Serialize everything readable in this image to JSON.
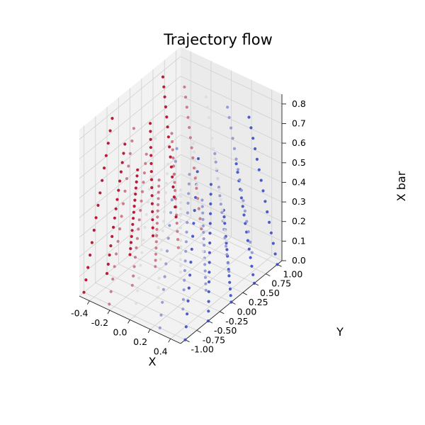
{
  "chart_data": {
    "type": "scatter",
    "projection": "3d",
    "title": "Trajectory flow",
    "xlabel": "X",
    "ylabel": "Y",
    "zlabel": "X bar",
    "xlim": [
      -0.5,
      0.5
    ],
    "ylim": [
      -1.1,
      1.1
    ],
    "zlim": [
      0,
      0.85
    ],
    "x_ticks": [
      "-0.4",
      "-0.2",
      "0.0",
      "0.2",
      "0.4"
    ],
    "y_ticks": [
      "-1.00",
      "-0.75",
      "-0.50",
      "-0.25",
      "0.00",
      "0.25",
      "0.50",
      "0.75",
      "1.00"
    ],
    "z_ticks": [
      "0.0",
      "0.1",
      "0.2",
      "0.3",
      "0.4",
      "0.5",
      "0.6",
      "0.7",
      "0.8"
    ],
    "grid": true,
    "colormap": "coolwarm",
    "color_range": [
      "#3b4cc0",
      "#dddddd",
      "#b40426"
    ],
    "start_grid": {
      "x": [
        -0.5,
        -0.25,
        0.0,
        0.25,
        0.5
      ],
      "y": [
        -1.0,
        -0.5,
        0.0,
        0.5,
        1.0
      ]
    },
    "flow": "each trajectory starts at z=0 on the start grid and rises in z while drifting toward y=0"
  }
}
